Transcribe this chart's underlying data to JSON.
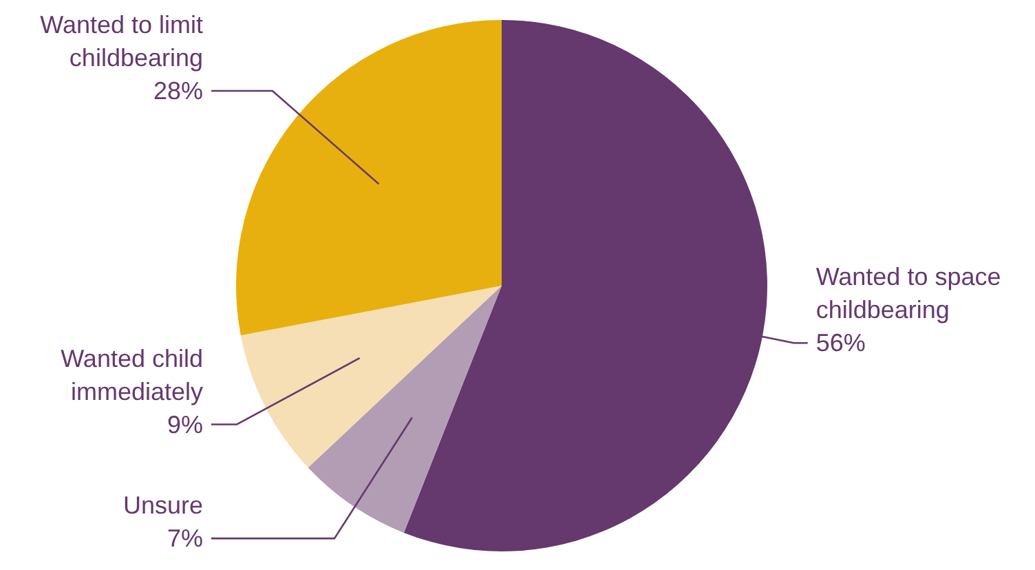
{
  "chart_data": {
    "type": "pie",
    "categories": [
      "Wanted to space childbearing",
      "Unsure",
      "Wanted child immediately",
      "Wanted to limit childbearing"
    ],
    "values": [
      56,
      7,
      9,
      28
    ],
    "colors": [
      "#65386e",
      "#b39db5",
      "#f6dfb4",
      "#e8b00f"
    ],
    "value_labels": [
      "56%",
      "7%",
      "9%",
      "28%"
    ]
  }
}
